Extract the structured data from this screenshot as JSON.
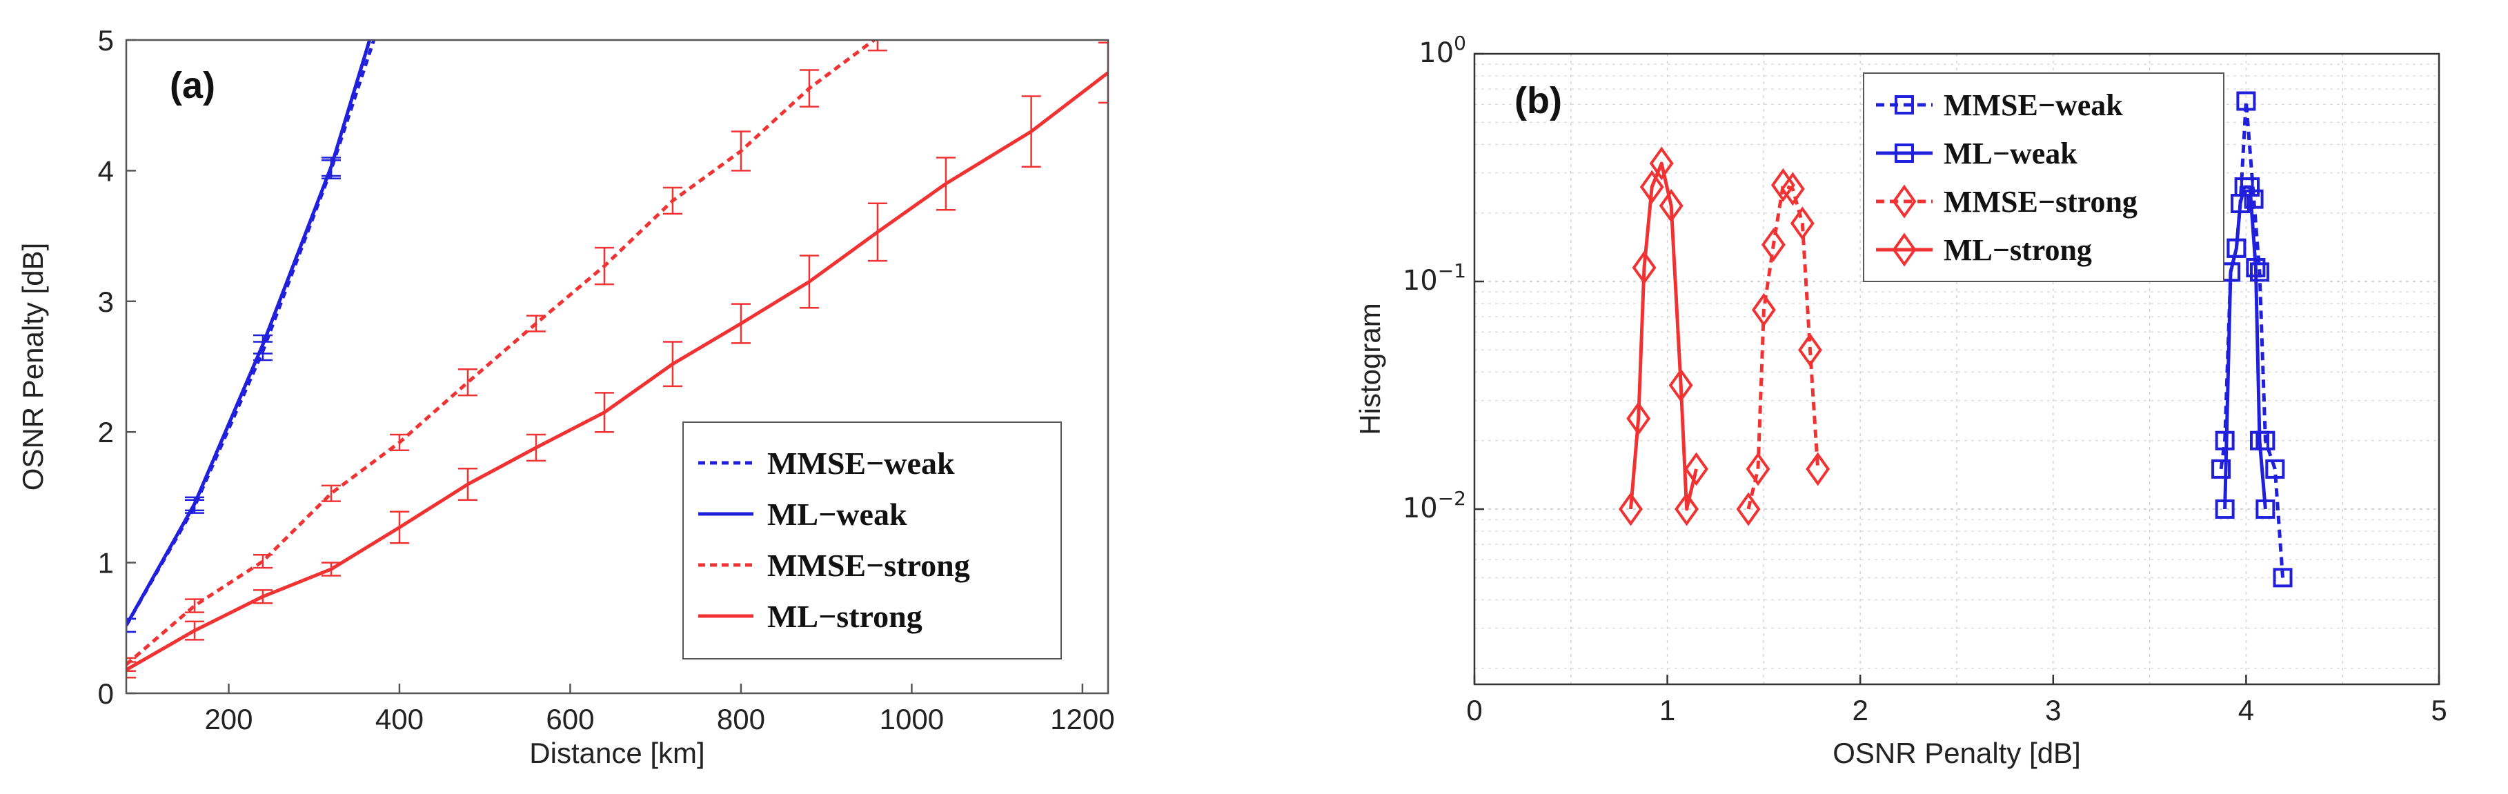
{
  "chart_data": [
    {
      "panel": "(a)",
      "type": "line",
      "xlabel": "Distance [km]",
      "ylabel": "OSNR Penalty [dB]",
      "xlim": [
        80,
        1230
      ],
      "ylim": [
        0,
        5
      ],
      "xticks": [
        200,
        400,
        600,
        800,
        1000,
        1200
      ],
      "yticks": [
        0,
        1,
        2,
        3,
        4,
        5
      ],
      "grid": false,
      "legend_position": "bottom-right",
      "series": [
        {
          "name": "MMSE−weak",
          "color": "#1f1fdc",
          "style": "dotted",
          "x": [
            80,
            160,
            240,
            320,
            370
          ],
          "y": [
            0.52,
            1.43,
            2.62,
            4.01,
            5.0
          ],
          "err": [
            0.05,
            0.05,
            0.07,
            0.07,
            0
          ]
        },
        {
          "name": "ML−weak",
          "color": "#1f1fdc",
          "style": "solid",
          "x": [
            80,
            160,
            240,
            320,
            365
          ],
          "y": [
            0.52,
            1.45,
            2.67,
            4.03,
            5.0
          ],
          "err": [
            0.05,
            0.05,
            0.07,
            0.07,
            0
          ]
        },
        {
          "name": "MMSE−strong",
          "color": "#f03232",
          "style": "dotted",
          "x": [
            80,
            160,
            240,
            320,
            400,
            480,
            560,
            640,
            720,
            800,
            880,
            960
          ],
          "y": [
            0.22,
            0.67,
            1.01,
            1.53,
            1.92,
            2.38,
            2.83,
            3.27,
            3.77,
            4.15,
            4.63,
            5.02
          ],
          "err": [
            0.05,
            0.05,
            0.05,
            0.06,
            0.06,
            0.1,
            0.06,
            0.14,
            0.1,
            0.15,
            0.14,
            0.1
          ]
        },
        {
          "name": "ML−strong",
          "color": "#f03232",
          "style": "solid",
          "x": [
            80,
            160,
            240,
            320,
            400,
            480,
            560,
            640,
            720,
            800,
            880,
            960,
            1040,
            1140,
            1230
          ],
          "y": [
            0.18,
            0.48,
            0.74,
            0.95,
            1.27,
            1.6,
            1.88,
            2.15,
            2.52,
            2.83,
            3.15,
            3.53,
            3.9,
            4.3,
            4.75
          ],
          "err": [
            0.06,
            0.07,
            0.05,
            0.05,
            0.12,
            0.12,
            0.1,
            0.15,
            0.17,
            0.15,
            0.2,
            0.22,
            0.2,
            0.27,
            0.23
          ]
        }
      ],
      "legend": [
        "MMSE−weak",
        "ML−weak",
        "MMSE−strong",
        "ML−strong"
      ]
    },
    {
      "panel": "(b)",
      "type": "line",
      "xlabel": "OSNR Penalty [dB]",
      "ylabel": "Histogram",
      "xscale": "linear",
      "yscale": "log",
      "xlim": [
        0,
        5
      ],
      "ylim": [
        0.0017,
        1
      ],
      "xticks": [
        "0",
        "1",
        "2",
        "3",
        "4",
        "5"
      ],
      "yticks": [
        {
          "value": 1,
          "mantissa": "10",
          "exponent": "0"
        },
        {
          "value": 0.1,
          "mantissa": "10",
          "exponent": "−1"
        },
        {
          "value": 0.01,
          "mantissa": "10",
          "exponent": "−2"
        }
      ],
      "grid": true,
      "legend_position": "top-left",
      "series": [
        {
          "name": "MMSE−weak",
          "color": "#1f1fdc",
          "style": "dashed",
          "marker": "square",
          "x": [
            3.87,
            3.89,
            3.92,
            3.95,
            3.97,
            4.0,
            4.04,
            4.07,
            4.1,
            4.15,
            4.19
          ],
          "y": [
            0.015,
            0.02,
            0.11,
            0.14,
            0.22,
            0.62,
            0.23,
            0.11,
            0.02,
            0.015,
            0.005
          ]
        },
        {
          "name": "ML−weak",
          "color": "#1f1fdc",
          "style": "solid",
          "marker": "square",
          "x": [
            3.89,
            3.92,
            3.95,
            3.97,
            3.99,
            4.02,
            4.05,
            4.07,
            4.1
          ],
          "y": [
            0.01,
            0.11,
            0.14,
            0.22,
            0.26,
            0.26,
            0.115,
            0.02,
            0.01
          ]
        },
        {
          "name": "MMSE−strong",
          "color": "#f03232",
          "style": "dashed",
          "marker": "diamond",
          "x": [
            1.42,
            1.47,
            1.5,
            1.55,
            1.6,
            1.65,
            1.7,
            1.74,
            1.78
          ],
          "y": [
            0.01,
            0.015,
            0.075,
            0.145,
            0.265,
            0.255,
            0.18,
            0.05,
            0.015
          ]
        },
        {
          "name": "ML−strong",
          "color": "#f03232",
          "style": "solid",
          "marker": "diamond",
          "x": [
            0.81,
            0.85,
            0.88,
            0.92,
            0.97,
            1.02,
            1.07,
            1.1,
            1.15
          ],
          "y": [
            0.01,
            0.025,
            0.115,
            0.26,
            0.33,
            0.215,
            0.035,
            0.01,
            0.015
          ]
        }
      ],
      "legend": [
        "MMSE−weak",
        "ML−weak",
        "MMSE−strong",
        "ML−strong"
      ]
    }
  ]
}
